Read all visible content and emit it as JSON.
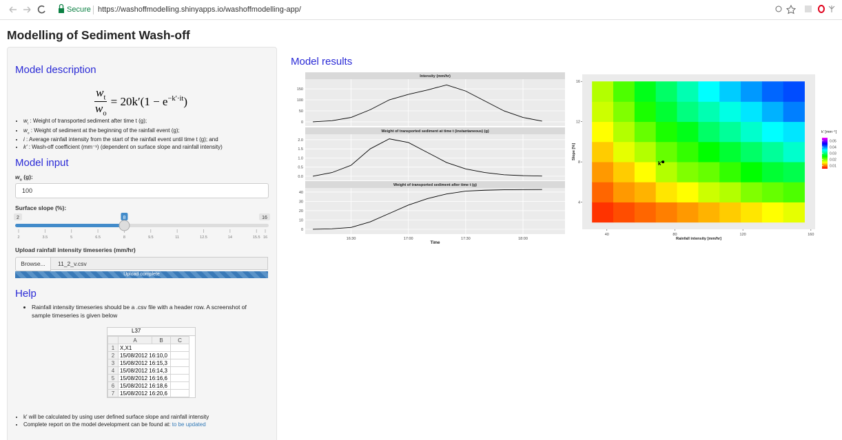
{
  "browser": {
    "secure": "Secure",
    "url": "https://washoffmodelling.shinyapps.io/washoffmodelling-app/"
  },
  "page": {
    "title": "Modelling of Sediment Wash-off"
  },
  "sidebar": {
    "description": {
      "heading": "Model description",
      "formula": {
        "num_symbol": "w",
        "num_sub": "t",
        "den_symbol": "w",
        "den_sub": "o",
        "rhs": "= 20k′(1 − e",
        "exponent": "−k′·it",
        "close": ")"
      },
      "items": [
        {
          "symbol": "w",
          "sub": "t",
          "text": " : Weight of transported sediment after time t (g);"
        },
        {
          "symbol": "w",
          "sub": "o",
          "text": " : Weight of sediment at the beginning of the rainfall event (g);"
        },
        {
          "symbol": "i",
          "text": " : Average rainfall intensity from the start of the rainfall event until time t (g); and"
        },
        {
          "symbol": "k′",
          "text": " : Wash-off coefficient (mm⁻¹) (dependent on surface slope and rainfall intensity)"
        }
      ]
    },
    "input": {
      "heading": "Model input",
      "wo_label": {
        "symbol": "w",
        "sub": "o",
        "text": " (g):"
      },
      "wo_value": "100",
      "slope_label": "Surface slope (%):",
      "slider": {
        "min": 2,
        "max": 16,
        "value": 8,
        "ticks": [
          2,
          3.5,
          5,
          6.5,
          8,
          9.5,
          11,
          12.5,
          14,
          15.5,
          16
        ]
      },
      "upload_label": "Upload rainfall intensity timeseries (mm/hr)",
      "browse": "Browse...",
      "file": "11_2_v.csv",
      "progress": "Upload complete"
    },
    "help": {
      "heading": "Help",
      "intro": "Rainfall intensity timeseries should be a .csv file with a header row. A screenshot of sample timeseries is given below",
      "sheet": {
        "cell": "L37",
        "columns": [
          "A",
          "B",
          "C"
        ],
        "rows": [
          [
            "1",
            "X,X1"
          ],
          [
            "2",
            "15/08/2012 16:10,0"
          ],
          [
            "3",
            "15/08/2012 16:15,3"
          ],
          [
            "4",
            "15/08/2012 16:14,3"
          ],
          [
            "5",
            "15/08/2012 16:16,6"
          ],
          [
            "6",
            "15/08/2012 16:18,6"
          ],
          [
            "7",
            "15/08/2012 16:20,6"
          ]
        ]
      },
      "note": "k′ will be calculated by using user defined surface slope and rainfall intensity",
      "report": "Complete report on the model development can be found at:",
      "link": "to be updated"
    }
  },
  "results": {
    "heading": "Model results",
    "timeseries": {
      "type": "line",
      "color": "#000000",
      "x": [
        "16:10",
        "16:20",
        "16:30",
        "16:40",
        "16:50",
        "17:00",
        "17:10",
        "17:20",
        "17:30",
        "17:40",
        "17:50",
        "18:00",
        "18:10"
      ],
      "xlim": [
        "16:06",
        "18:22"
      ],
      "xticks": [
        "16:30",
        "17:00",
        "17:30",
        "18:00"
      ],
      "xlabel": "Time",
      "panels": [
        {
          "title": "Intensity (mm/hr)",
          "values": [
            0,
            5,
            20,
            55,
            100,
            125,
            145,
            168,
            140,
            95,
            50,
            20,
            3
          ],
          "ylim": [
            -19,
            194
          ],
          "yticks": [
            0,
            50,
            100,
            150
          ]
        },
        {
          "title": "Weight of transported sediment at time t (instantaneous) (g)",
          "values": [
            0,
            0.2,
            0.6,
            1.5,
            2.05,
            1.85,
            1.3,
            0.75,
            0.4,
            0.2,
            0.08,
            0.03,
            0.01
          ],
          "ylim": [
            -0.23,
            2.3
          ],
          "yticks": [
            {
              "value": 0,
              "label": "0.0"
            },
            0.5,
            {
              "value": 1,
              "label": "1.0"
            },
            1.5,
            {
              "value": 2,
              "label": "2.0"
            }
          ]
        },
        {
          "title": "Weight of transported sediment after time t (g)",
          "values": [
            0,
            0.5,
            2,
            8,
            17,
            26,
            33,
            38,
            41,
            42,
            42.5,
            42.7,
            42.8
          ],
          "ylim": [
            -5.2,
            44.4
          ],
          "yticks": [
            0,
            10,
            20,
            30,
            40
          ]
        }
      ]
    },
    "heatmap": {
      "type": "heatmap",
      "x": [
        37.5,
        50,
        62.5,
        75,
        87.5,
        100,
        112.5,
        125,
        137.5,
        150
      ],
      "y": [
        3,
        5,
        7,
        9,
        11,
        13,
        15
      ],
      "z": [
        [
          0.007,
          0.008,
          0.009,
          0.01,
          0.011,
          0.012,
          0.013,
          0.014,
          0.015,
          0.016
        ],
        [
          0.009,
          0.011,
          0.012,
          0.014,
          0.015,
          0.017,
          0.018,
          0.02,
          0.021,
          0.022
        ],
        [
          0.011,
          0.013,
          0.015,
          0.018,
          0.02,
          0.021,
          0.023,
          0.025,
          0.027,
          0.028
        ],
        [
          0.013,
          0.016,
          0.018,
          0.021,
          0.023,
          0.025,
          0.027,
          0.029,
          0.031,
          0.033
        ],
        [
          0.015,
          0.018,
          0.021,
          0.024,
          0.026,
          0.029,
          0.031,
          0.033,
          0.035,
          0.036
        ],
        [
          0.017,
          0.02,
          0.024,
          0.027,
          0.03,
          0.032,
          0.034,
          0.036,
          0.038,
          0.04
        ],
        [
          0.018,
          0.022,
          0.026,
          0.029,
          0.032,
          0.035,
          0.037,
          0.039,
          0.041,
          0.042
        ]
      ],
      "xlim": [
        25.5,
        162.5
      ],
      "ylim": [
        1.3,
        16.7
      ],
      "xticks": [
        40,
        80,
        120,
        160
      ],
      "yticks": [
        4,
        8,
        12,
        16
      ],
      "xlabel": "Rainfall intensity [mm/hr]",
      "ylabel": "Slope [%]",
      "legend_title": "k′ [mm⁻¹]",
      "clim": [
        0.005,
        0.055
      ],
      "colorbar_ticks": [
        0.01,
        0.02,
        0.03,
        0.04,
        0.05
      ],
      "colorscale": [
        "#ff0000",
        "#ffff00",
        "#00ff00",
        "#00ffff",
        "#0000ff",
        "#ff00ff"
      ],
      "point": {
        "x": 73,
        "y": 8,
        "label": "k′"
      }
    }
  }
}
